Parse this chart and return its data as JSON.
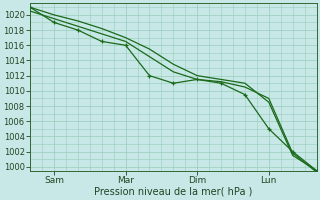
{
  "xlabel": "Pression niveau de la mer( hPa )",
  "bg_color": "#c8e8e8",
  "grid_color": "#99ccbb",
  "line_color": "#1a6a1a",
  "xlim": [
    0,
    96
  ],
  "ylim": [
    999.5,
    1021.5
  ],
  "yticks": [
    1000,
    1002,
    1004,
    1006,
    1008,
    1010,
    1012,
    1014,
    1016,
    1018,
    1020
  ],
  "xtick_positions": [
    8,
    32,
    56,
    80
  ],
  "xtick_labels": [
    "Sam",
    "Mar",
    "Dim",
    "Lun"
  ],
  "series1": {
    "x": [
      0,
      8,
      16,
      24,
      32,
      40,
      48,
      56,
      64,
      72,
      80,
      88,
      96
    ],
    "y": [
      1021.0,
      1020.0,
      1019.2,
      1018.2,
      1017.0,
      1015.5,
      1013.5,
      1012.0,
      1011.5,
      1011.0,
      1008.5,
      1001.5,
      999.5
    ]
  },
  "series2": {
    "x": [
      0,
      8,
      16,
      24,
      32,
      40,
      48,
      56,
      64,
      72,
      80,
      88,
      96
    ],
    "y": [
      1020.5,
      1019.5,
      1018.5,
      1017.5,
      1016.5,
      1014.5,
      1012.5,
      1011.5,
      1011.2,
      1010.5,
      1009.0,
      1001.8,
      999.3
    ]
  },
  "series3": {
    "x": [
      0,
      8,
      16,
      24,
      32,
      40,
      48,
      56,
      64,
      72,
      80,
      88,
      96
    ],
    "y": [
      1021.0,
      1019.0,
      1018.0,
      1016.5,
      1016.0,
      1012.0,
      1011.0,
      1011.5,
      1011.0,
      1009.5,
      1005.0,
      1002.0,
      999.5
    ]
  }
}
